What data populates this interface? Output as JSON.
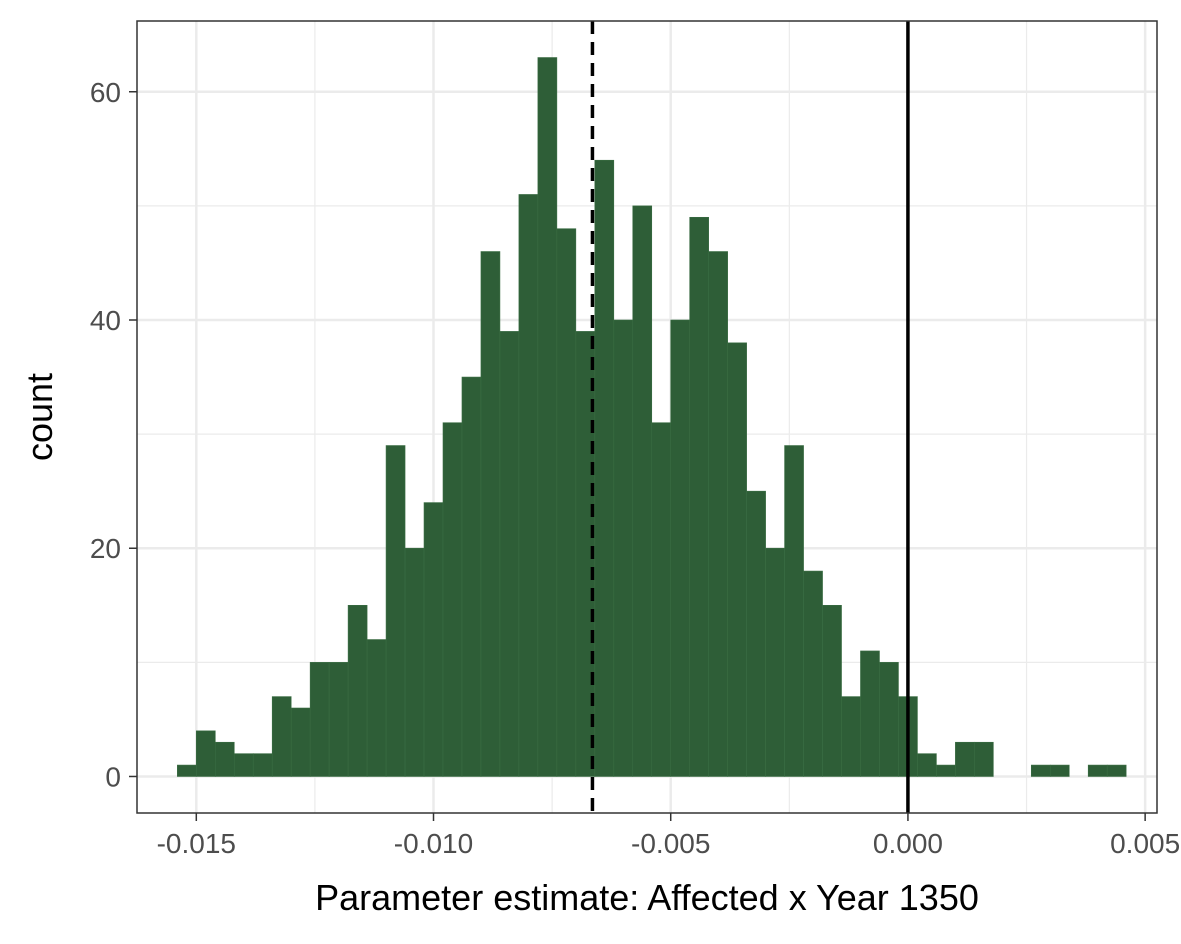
{
  "chart_data": {
    "type": "bar",
    "subtype": "histogram",
    "title": "",
    "xlabel": "Parameter estimate: Affected x Year 1350",
    "ylabel": "count",
    "xlim": [
      -0.01625,
      0.00525
    ],
    "ylim": [
      -3.2,
      66.2
    ],
    "x_ticks": [
      -0.015,
      -0.01,
      -0.005,
      0.0,
      0.005
    ],
    "x_tick_labels": [
      "-0.015",
      "-0.010",
      "-0.005",
      "0.000",
      "0.005"
    ],
    "y_ticks": [
      0,
      20,
      40,
      60
    ],
    "y_tick_labels": [
      "0",
      "20",
      "40",
      "60"
    ],
    "grid": true,
    "bar_color": "#2e5e37",
    "bin_width": 0.0004,
    "bins": [
      {
        "x_center": -0.0152,
        "count": 1
      },
      {
        "x_center": -0.0148,
        "count": 4
      },
      {
        "x_center": -0.0144,
        "count": 3
      },
      {
        "x_center": -0.014,
        "count": 2
      },
      {
        "x_center": -0.0136,
        "count": 2
      },
      {
        "x_center": -0.0132,
        "count": 7
      },
      {
        "x_center": -0.0128,
        "count": 6
      },
      {
        "x_center": -0.0124,
        "count": 10
      },
      {
        "x_center": -0.012,
        "count": 10
      },
      {
        "x_center": -0.0116,
        "count": 15
      },
      {
        "x_center": -0.0112,
        "count": 12
      },
      {
        "x_center": -0.0108,
        "count": 29
      },
      {
        "x_center": -0.0104,
        "count": 20
      },
      {
        "x_center": -0.01,
        "count": 24
      },
      {
        "x_center": -0.0096,
        "count": 31
      },
      {
        "x_center": -0.0092,
        "count": 35
      },
      {
        "x_center": -0.0088,
        "count": 46
      },
      {
        "x_center": -0.0084,
        "count": 39
      },
      {
        "x_center": -0.008,
        "count": 51
      },
      {
        "x_center": -0.0076,
        "count": 63
      },
      {
        "x_center": -0.0072,
        "count": 48
      },
      {
        "x_center": -0.0068,
        "count": 39
      },
      {
        "x_center": -0.0064,
        "count": 54
      },
      {
        "x_center": -0.006,
        "count": 40
      },
      {
        "x_center": -0.0056,
        "count": 50
      },
      {
        "x_center": -0.0052,
        "count": 31
      },
      {
        "x_center": -0.0048,
        "count": 40
      },
      {
        "x_center": -0.0044,
        "count": 49
      },
      {
        "x_center": -0.004,
        "count": 46
      },
      {
        "x_center": -0.0036,
        "count": 38
      },
      {
        "x_center": -0.0032,
        "count": 25
      },
      {
        "x_center": -0.0028,
        "count": 20
      },
      {
        "x_center": -0.0024,
        "count": 29
      },
      {
        "x_center": -0.002,
        "count": 18
      },
      {
        "x_center": -0.0016,
        "count": 15
      },
      {
        "x_center": -0.0012,
        "count": 7
      },
      {
        "x_center": -0.0008,
        "count": 11
      },
      {
        "x_center": -0.0004,
        "count": 10
      },
      {
        "x_center": 0.0,
        "count": 7
      },
      {
        "x_center": 0.0004,
        "count": 2
      },
      {
        "x_center": 0.0008,
        "count": 1
      },
      {
        "x_center": 0.0012,
        "count": 3
      },
      {
        "x_center": 0.0016,
        "count": 3
      },
      {
        "x_center": 0.0028,
        "count": 1
      },
      {
        "x_center": 0.0032,
        "count": 1
      },
      {
        "x_center": 0.004,
        "count": 1
      },
      {
        "x_center": 0.0044,
        "count": 1
      }
    ],
    "reference_lines": [
      {
        "x": -0.00665,
        "style": "dashed",
        "color": "#000000"
      },
      {
        "x": 0.0,
        "style": "solid",
        "color": "#000000"
      }
    ]
  }
}
